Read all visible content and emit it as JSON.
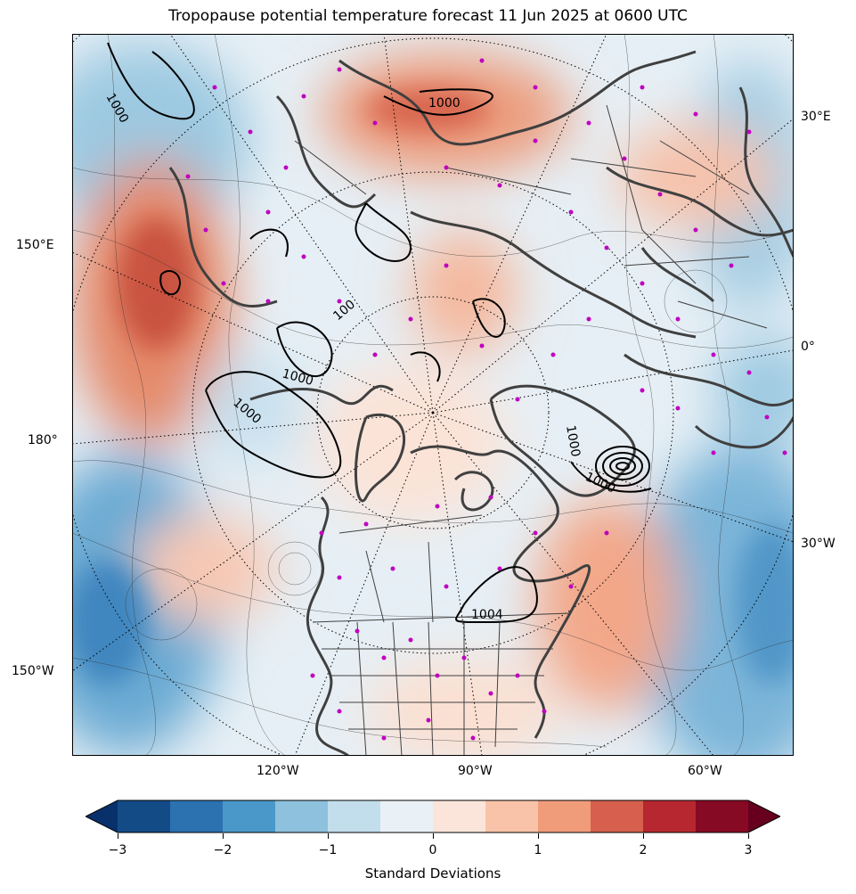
{
  "title": "Tropopause potential temperature forecast 11 Jun 2025 at 0600 UTC",
  "lon_labels": {
    "e30": "30°E",
    "e150": "150°E",
    "zero": "0°",
    "d180": "180°",
    "w30": "30°W",
    "w150": "150°W",
    "w120": "120°W",
    "w90": "90°W",
    "w60": "60°W"
  },
  "pressure_labels": {
    "p1": "1000",
    "p2": "1000",
    "p3": "1000",
    "p4": "1000",
    "p5": "1000",
    "p6": "1000",
    "p7": "1004",
    "p8": "100"
  },
  "colorbar": {
    "label": "Standard Deviations",
    "ticks": [
      "−3",
      "−2",
      "−1",
      "0",
      "1",
      "2",
      "3"
    ],
    "colors": [
      "#08306b",
      "#134b87",
      "#2c71b0",
      "#4a98c9",
      "#8ec1dd",
      "#c2deec",
      "#e9f1f6",
      "#fbe5da",
      "#f9c3a9",
      "#f09c7b",
      "#d6604d",
      "#b6272f",
      "#870a24",
      "#67001f"
    ]
  },
  "colors": {
    "coast": "#404040",
    "stations": "#c000c0",
    "graticule": "#000000"
  }
}
